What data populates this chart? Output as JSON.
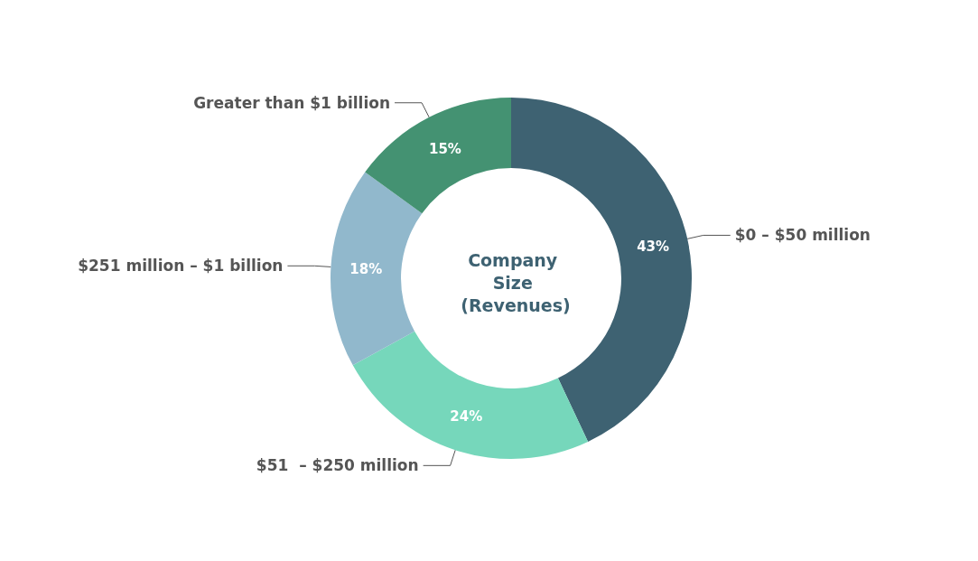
{
  "chart_data": {
    "type": "donut",
    "title": "Company Size (Revenues)",
    "categories": [
      "$0 – $50 million",
      "$51  – $250 million",
      "$251 million – $1 billion",
      "Greater than $1 billion"
    ],
    "values": [
      43,
      24,
      18,
      15
    ],
    "colors": [
      "#3e6272",
      "#76d7bb",
      "#91b8cc",
      "#449272"
    ],
    "value_labels": [
      "43%",
      "24%",
      "18%",
      "15%"
    ],
    "legend": false
  }
}
